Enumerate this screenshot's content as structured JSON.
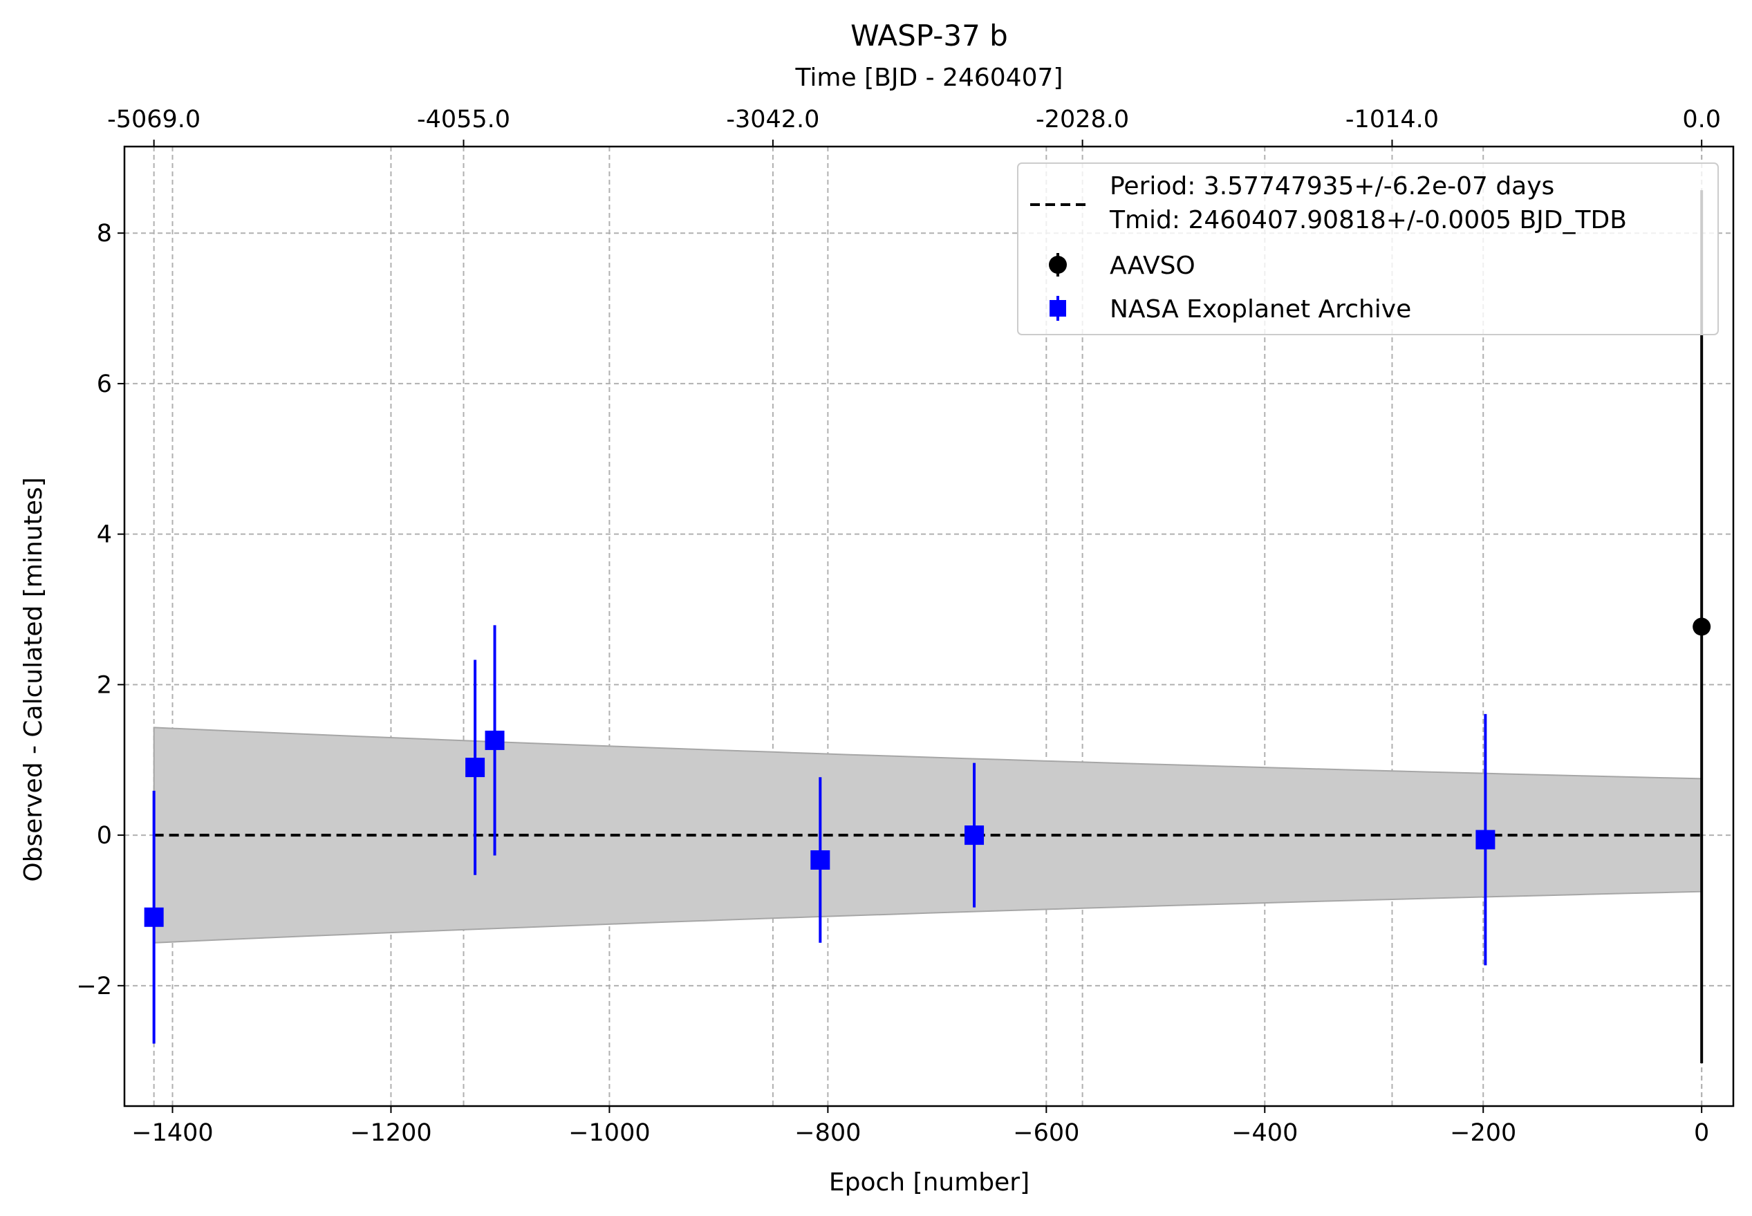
{
  "chart_data": {
    "type": "scatter",
    "title": "WASP-37 b",
    "xlabel": "Epoch [number]",
    "ylabel": "Observed - Calculated [minutes]",
    "top_xlabel": "Time [BJD - 2460407]",
    "xlim": [
      -1444,
      29
    ],
    "ylim": [
      -3.6,
      9.15
    ],
    "xticks": [
      -1400,
      -1200,
      -1000,
      -800,
      -600,
      -400,
      -200,
      0
    ],
    "xtick_labels": [
      "−1400",
      "−1200",
      "−1000",
      "−800",
      "−600",
      "−400",
      "−200",
      "0"
    ],
    "yticks": [
      -2,
      0,
      2,
      4,
      6,
      8
    ],
    "ytick_labels": [
      "−2",
      "0",
      "2",
      "4",
      "6",
      "8"
    ],
    "top_xticks_epoch": [
      -1417,
      -1133.5,
      -850.3,
      -566.9,
      -283.4,
      0
    ],
    "top_xtick_labels": [
      "-5069.0",
      "-4055.0",
      "-3042.0",
      "-2028.0",
      "-1014.0",
      "0.0"
    ],
    "grid": true,
    "legend_position": "top-right",
    "fit": {
      "label_line1": "Period: 3.57747935+/-6.2e-07 days",
      "label_line2": "Tmid: 2460407.90818+/-0.0005 BJD_TDB",
      "value": 0,
      "color": "#000000"
    },
    "uncertainty_band": {
      "x": [
        -1417,
        0
      ],
      "upper": [
        1.43,
        0.75
      ],
      "lower": [
        -1.43,
        -0.75
      ],
      "color": "#cbcbcb"
    },
    "series": [
      {
        "name": "AAVSO",
        "marker": "circle",
        "color": "#000000",
        "points": [
          {
            "x": 0,
            "y": 2.77,
            "yerr_low": 5.8,
            "yerr_high": 5.8
          }
        ]
      },
      {
        "name": "NASA Exoplanet Archive",
        "marker": "square",
        "color": "#0000ff",
        "points": [
          {
            "x": -1417,
            "y": -1.09,
            "yerr_low": 1.68,
            "yerr_high": 1.68
          },
          {
            "x": -1123,
            "y": 0.9,
            "yerr_low": 1.43,
            "yerr_high": 1.43
          },
          {
            "x": -1105,
            "y": 1.26,
            "yerr_low": 1.53,
            "yerr_high": 1.53
          },
          {
            "x": -807,
            "y": -0.33,
            "yerr_low": 1.1,
            "yerr_high": 1.1
          },
          {
            "x": -666,
            "y": 0.0,
            "yerr_low": 0.96,
            "yerr_high": 0.96
          },
          {
            "x": -198,
            "y": -0.06,
            "yerr_low": 1.67,
            "yerr_high": 1.67
          }
        ]
      }
    ]
  }
}
